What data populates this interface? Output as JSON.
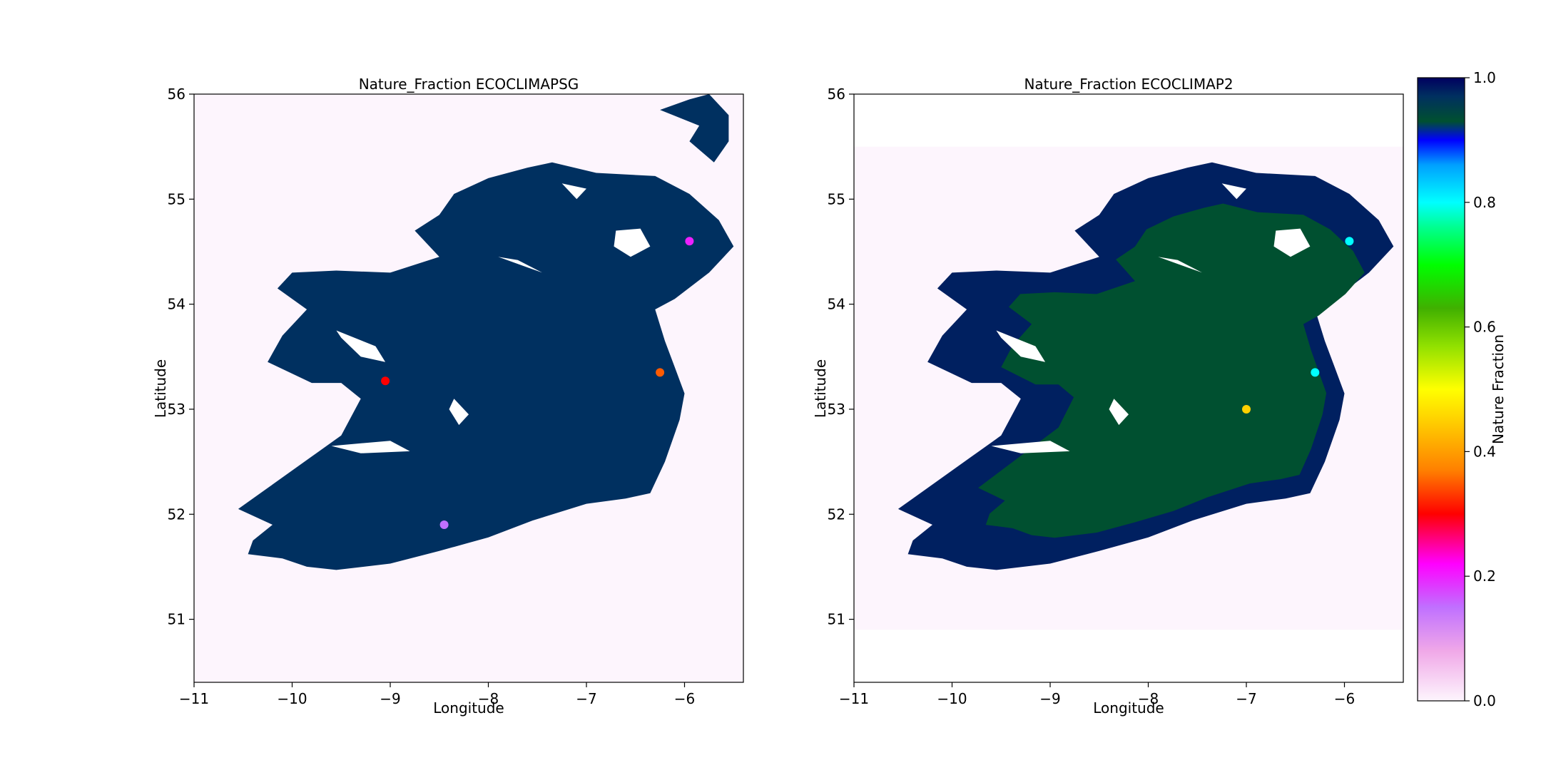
{
  "chart_data": [
    {
      "type": "heatmap",
      "title": "Nature_Fraction ECOCLIMAPSG",
      "xlabel": "Longitude",
      "ylabel": "Latitude",
      "xlim": [
        -11,
        -5.4
      ],
      "ylim": [
        50.4,
        56
      ],
      "xticks": [
        -11,
        -10,
        -9,
        -8,
        -7,
        -6
      ],
      "xtick_labels": [
        "−11",
        "−10",
        "−9",
        "−8",
        "−7",
        "−6"
      ],
      "yticks": [
        51,
        52,
        53,
        54,
        55,
        56
      ],
      "ytick_labels": [
        "51",
        "52",
        "53",
        "54",
        "55",
        "56"
      ],
      "grid": false,
      "background_value": 0.0,
      "land_value": 0.97,
      "hotspots": [
        {
          "lon": -6.25,
          "lat": 53.35,
          "value": 0.35
        },
        {
          "lon": -5.95,
          "lat": 54.6,
          "value": 0.2
        },
        {
          "lon": -8.45,
          "lat": 51.9,
          "value": 0.15
        },
        {
          "lon": -9.05,
          "lat": 53.27,
          "value": 0.3
        }
      ]
    },
    {
      "type": "heatmap",
      "title": "Nature_Fraction ECOCLIMAP2",
      "xlabel": "Longitude",
      "ylabel": "Latitude",
      "xlim": [
        -11,
        -5.4
      ],
      "ylim": [
        50.4,
        56
      ],
      "xticks": [
        -11,
        -10,
        -9,
        -8,
        -7,
        -6
      ],
      "xtick_labels": [
        "−11",
        "−10",
        "−9",
        "−8",
        "−7",
        "−6"
      ],
      "yticks": [
        51,
        52,
        53,
        54,
        55,
        56
      ],
      "ytick_labels": [
        "51",
        "52",
        "53",
        "54",
        "55",
        "56"
      ],
      "grid": false,
      "data_extent": {
        "lon": [
          -11,
          -5.4
        ],
        "lat": [
          50.9,
          55.5
        ]
      },
      "background_value": 0.0,
      "coast_value": 0.98,
      "interior_value": 0.93,
      "hotspots": [
        {
          "lon": -7.0,
          "lat": 53.0,
          "value": 0.45
        },
        {
          "lon": -6.3,
          "lat": 53.35,
          "value": 0.8
        },
        {
          "lon": -5.95,
          "lat": 54.6,
          "value": 0.8
        }
      ]
    }
  ],
  "colorbar": {
    "label": "Nature Fraction",
    "range": [
      0,
      1
    ],
    "ticks": [
      0.0,
      0.2,
      0.4,
      0.6,
      0.8,
      1.0
    ],
    "tick_labels": [
      "0.0",
      "0.2",
      "0.4",
      "0.6",
      "0.8",
      "1.0"
    ],
    "colormap": "gist_ncar_r",
    "stops": [
      {
        "v": 0.0,
        "color": "#fdf5fd"
      },
      {
        "v": 0.08,
        "color": "#f0a8e8"
      },
      {
        "v": 0.15,
        "color": "#c070ff"
      },
      {
        "v": 0.22,
        "color": "#ff00ff"
      },
      {
        "v": 0.3,
        "color": "#ff0000"
      },
      {
        "v": 0.37,
        "color": "#ff8000"
      },
      {
        "v": 0.45,
        "color": "#ffd000"
      },
      {
        "v": 0.5,
        "color": "#ffff00"
      },
      {
        "v": 0.57,
        "color": "#90e000"
      },
      {
        "v": 0.63,
        "color": "#40b000"
      },
      {
        "v": 0.7,
        "color": "#00ff00"
      },
      {
        "v": 0.76,
        "color": "#00ff90"
      },
      {
        "v": 0.8,
        "color": "#00ffff"
      },
      {
        "v": 0.86,
        "color": "#00a0ff"
      },
      {
        "v": 0.9,
        "color": "#0000ff"
      },
      {
        "v": 0.93,
        "color": "#005030"
      },
      {
        "v": 0.97,
        "color": "#003060"
      },
      {
        "v": 1.0,
        "color": "#000060"
      }
    ]
  }
}
